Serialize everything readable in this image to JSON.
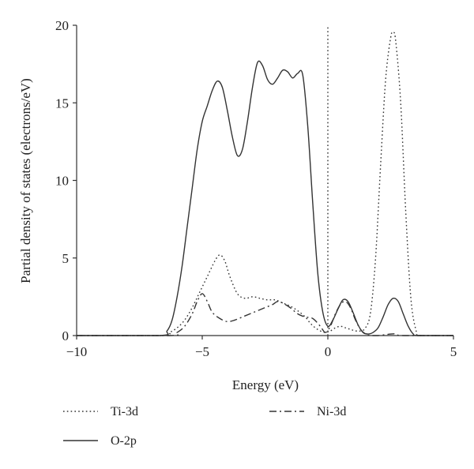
{
  "chart_data": {
    "type": "line",
    "title": "",
    "xlabel": "Energy (eV)",
    "ylabel": "Partial density of states (electrons/eV)",
    "xlim": [
      -10,
      5
    ],
    "ylim": [
      0,
      20
    ],
    "xticks": [
      "-10",
      "-5",
      "0",
      "5"
    ],
    "yticks": [
      "0",
      "5",
      "10",
      "15",
      "20"
    ],
    "xtick_values": [
      -10,
      -5,
      0,
      5
    ],
    "ytick_values": [
      0,
      5,
      10,
      15,
      20
    ],
    "grid": false,
    "legend_position": "bottom",
    "fermi_level": 0,
    "series": [
      {
        "name": "Ti-3d",
        "style": "dotted",
        "color": "#333333",
        "x": [
          -10,
          -6.6,
          -6.3,
          -6.0,
          -5.7,
          -5.4,
          -5.1,
          -4.8,
          -4.5,
          -4.3,
          -4.1,
          -3.9,
          -3.6,
          -3.3,
          -3.0,
          -2.7,
          -2.4,
          -2.1,
          -1.8,
          -1.5,
          -1.2,
          -0.9,
          -0.7,
          -0.5,
          -0.3,
          -0.1,
          0.1,
          0.3,
          0.5,
          0.7,
          0.9,
          1.1,
          1.3,
          1.5,
          1.7,
          1.9,
          2.1,
          2.3,
          2.5,
          2.6,
          2.7,
          2.9,
          3.1,
          3.3,
          3.5,
          3.7,
          5
        ],
        "y": [
          0,
          0,
          0.2,
          0.5,
          1.0,
          1.8,
          2.8,
          3.8,
          4.8,
          5.2,
          4.8,
          3.8,
          2.7,
          2.4,
          2.5,
          2.4,
          2.3,
          2.3,
          2.1,
          1.9,
          1.6,
          1.2,
          0.8,
          0.5,
          0.3,
          0.2,
          0.3,
          0.5,
          0.6,
          0.5,
          0.4,
          0.3,
          0.3,
          0.5,
          1.5,
          5.0,
          11.0,
          16.5,
          19.2,
          19.5,
          19.0,
          15.0,
          8.0,
          2.5,
          0.4,
          0,
          0
        ]
      },
      {
        "name": "Ni-3d",
        "style": "dash-dot",
        "color": "#333333",
        "x": [
          -10,
          -6.3,
          -6.0,
          -5.7,
          -5.4,
          -5.2,
          -5.0,
          -4.8,
          -4.6,
          -4.3,
          -4.0,
          -3.7,
          -3.4,
          -3.1,
          -2.8,
          -2.5,
          -2.2,
          -2.0,
          -1.8,
          -1.5,
          -1.2,
          -0.9,
          -0.6,
          -0.3,
          -0.1,
          0.1,
          0.3,
          0.5,
          0.7,
          0.9,
          1.1,
          1.3,
          1.5,
          1.7,
          2.0,
          2.5,
          2.7,
          3.0,
          5
        ],
        "y": [
          0,
          0,
          0.2,
          0.6,
          1.4,
          2.2,
          2.7,
          2.2,
          1.5,
          1.1,
          0.9,
          1.0,
          1.2,
          1.4,
          1.6,
          1.8,
          2.0,
          2.2,
          2.1,
          1.8,
          1.4,
          1.2,
          1.1,
          0.6,
          0.2,
          0.6,
          1.4,
          2.0,
          2.2,
          1.8,
          1.0,
          0.4,
          0.1,
          0,
          0,
          0.1,
          0.1,
          0,
          0
        ]
      },
      {
        "name": "O-2p",
        "style": "solid",
        "color": "#333333",
        "x": [
          -10,
          -6.7,
          -6.4,
          -6.2,
          -6.0,
          -5.8,
          -5.6,
          -5.4,
          -5.2,
          -5.0,
          -4.8,
          -4.6,
          -4.4,
          -4.2,
          -4.0,
          -3.8,
          -3.6,
          -3.4,
          -3.2,
          -3.0,
          -2.8,
          -2.6,
          -2.4,
          -2.2,
          -2.0,
          -1.8,
          -1.6,
          -1.4,
          -1.2,
          -1.0,
          -0.8,
          -0.6,
          -0.4,
          -0.2,
          0.0,
          0.2,
          0.4,
          0.6,
          0.8,
          1.0,
          1.2,
          1.4,
          1.6,
          1.8,
          2.0,
          2.2,
          2.4,
          2.6,
          2.8,
          3.0,
          3.2,
          3.4,
          3.6,
          5
        ],
        "y": [
          0,
          0,
          0.3,
          1.0,
          2.5,
          4.5,
          7.0,
          9.5,
          12.0,
          13.8,
          14.8,
          15.8,
          16.4,
          16.0,
          14.5,
          12.8,
          11.6,
          12.0,
          13.8,
          16.0,
          17.6,
          17.4,
          16.5,
          16.2,
          16.6,
          17.1,
          17.0,
          16.6,
          16.9,
          16.8,
          13.5,
          8.5,
          4.0,
          1.5,
          0.6,
          1.0,
          1.7,
          2.3,
          2.2,
          1.5,
          0.7,
          0.2,
          0.1,
          0.2,
          0.5,
          1.2,
          2.0,
          2.4,
          2.2,
          1.4,
          0.6,
          0.1,
          0,
          0
        ]
      }
    ],
    "legend": [
      {
        "name": "Ti-3d",
        "style": "dotted"
      },
      {
        "name": "Ni-3d",
        "style": "dash-dot"
      },
      {
        "name": "O-2p",
        "style": "solid"
      }
    ]
  }
}
